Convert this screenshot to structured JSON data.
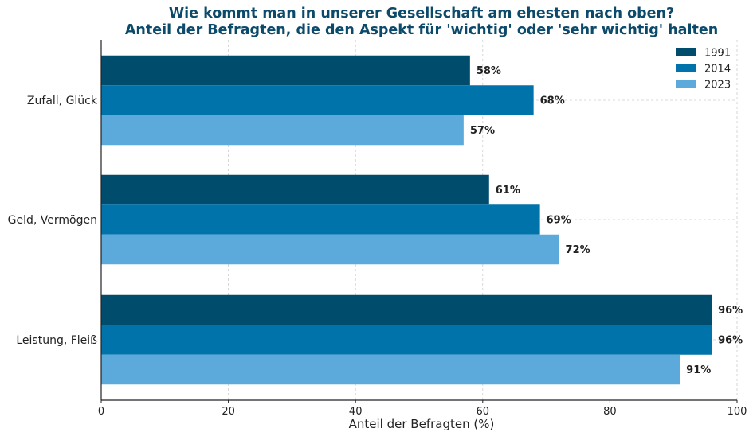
{
  "colors": {
    "title": "#0b4a6a",
    "series": [
      "#004c6d",
      "#0073aa",
      "#5ca9dc"
    ],
    "grid": "#cccccc",
    "axis": "#222222"
  },
  "chart_data": {
    "type": "bar",
    "orientation": "horizontal",
    "title": "Wie kommt man in unserer Gesellschaft am ehesten nach oben?",
    "subtitle": "Anteil der Befragten, die den Aspekt für 'wichtig' oder 'sehr wichtig' halten",
    "xlabel": "Anteil der Befragten (%)",
    "ylabel": "",
    "xlim": [
      0,
      100
    ],
    "xticks": [
      "0",
      "20",
      "40",
      "60",
      "80",
      "100"
    ],
    "xtick_values": [
      0,
      20,
      40,
      60,
      80,
      100
    ],
    "grid": true,
    "legend_position": "top-right",
    "categories": [
      "Zufall, Glück",
      "Geld, Vermögen",
      "Leistung, Fleiß"
    ],
    "series": [
      {
        "name": "1991",
        "values": [
          58,
          61,
          96
        ],
        "labels": [
          "58%",
          "61%",
          "96%"
        ]
      },
      {
        "name": "2014",
        "values": [
          68,
          69,
          96
        ],
        "labels": [
          "68%",
          "69%",
          "96%"
        ]
      },
      {
        "name": "2023",
        "values": [
          57,
          72,
          91
        ],
        "labels": [
          "57%",
          "72%",
          "91%"
        ]
      }
    ]
  }
}
